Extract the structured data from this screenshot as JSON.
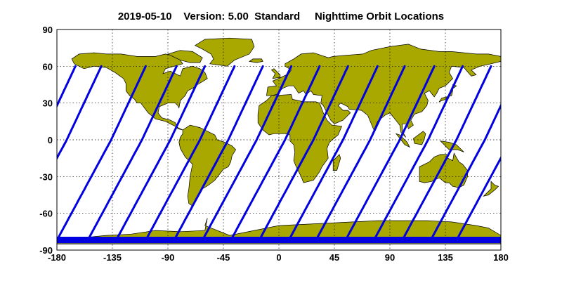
{
  "title": "2019-05-10    Version: 5.00  Standard     Nighttime Orbit Locations",
  "colors": {
    "land": "#a8a800",
    "orbit": "#0000e0",
    "background": "#ffffff"
  },
  "map": {
    "projection": "equirectangular",
    "lon_range": [
      -180,
      180
    ],
    "lat_range": [
      -90,
      90
    ],
    "grid": true,
    "x_ticks": [
      {
        "value": -180,
        "label": "-180"
      },
      {
        "value": -135,
        "label": "-135"
      },
      {
        "value": -90,
        "label": "-90"
      },
      {
        "value": -45,
        "label": "-45"
      },
      {
        "value": 0,
        "label": "0"
      },
      {
        "value": 45,
        "label": "45"
      },
      {
        "value": 90,
        "label": "90"
      },
      {
        "value": 135,
        "label": "135"
      },
      {
        "value": 180,
        "label": "180"
      }
    ],
    "y_ticks": [
      {
        "value": 90,
        "label": "90"
      },
      {
        "value": 60,
        "label": "60"
      },
      {
        "value": 30,
        "label": "30"
      },
      {
        "value": 0,
        "label": "0"
      },
      {
        "value": -30,
        "label": "-30"
      },
      {
        "value": -60,
        "label": "-60"
      },
      {
        "value": -90,
        "label": "-90"
      }
    ],
    "orbit_tracks": {
      "lat_north_limit": 60,
      "lat_south_limit": -82,
      "equator_crossing_longitudes": [
        -172,
        -136,
        -111,
        -88,
        -64,
        -41,
        -18,
        5,
        28,
        52,
        74,
        98,
        121,
        144,
        167
      ]
    }
  }
}
